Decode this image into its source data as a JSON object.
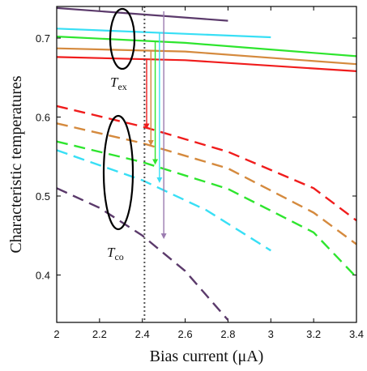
{
  "chart_data": {
    "type": "line",
    "title": "",
    "xlabel": "Bias current (μA)",
    "ylabel": "Characteristic temperatures",
    "xlim": [
      2,
      3.4
    ],
    "ylim": [
      0.34,
      0.74
    ],
    "xticks": [
      2,
      2.2,
      2.4,
      2.6,
      2.8,
      3,
      3.2,
      3.4
    ],
    "yticks": [
      0.4,
      0.5,
      0.6,
      0.7
    ],
    "xtick_labels": [
      "2",
      "2.2",
      "2.4",
      "2.6",
      "2.8",
      "3",
      "3.2",
      "3.4"
    ],
    "ytick_labels": [
      "0.4",
      "0.5",
      "0.6",
      "0.7"
    ],
    "grid": false,
    "series": [
      {
        "group": "Tex",
        "style": "solid",
        "color": "#5b3a6b",
        "x": [
          2.0,
          2.8
        ],
        "y": [
          0.738,
          0.722
        ]
      },
      {
        "group": "Tex",
        "style": "solid",
        "color": "#38dff5",
        "x": [
          2.0,
          3.0
        ],
        "y": [
          0.712,
          0.701
        ]
      },
      {
        "group": "Tex",
        "style": "solid",
        "color": "#2ee52e",
        "x": [
          2.0,
          2.6,
          3.4
        ],
        "y": [
          0.702,
          0.694,
          0.677
        ]
      },
      {
        "group": "Tex",
        "style": "solid",
        "color": "#d58a3e",
        "x": [
          2.0,
          2.6,
          3.4
        ],
        "y": [
          0.687,
          0.683,
          0.667
        ]
      },
      {
        "group": "Tex",
        "style": "solid",
        "color": "#f01c1c",
        "x": [
          2.0,
          2.6,
          3.4
        ],
        "y": [
          0.676,
          0.672,
          0.658
        ]
      },
      {
        "group": "Tco",
        "style": "dashed",
        "color": "#f01c1c",
        "x": [
          2.0,
          2.4,
          2.8,
          3.2,
          3.4
        ],
        "y": [
          0.614,
          0.588,
          0.556,
          0.51,
          0.469
        ]
      },
      {
        "group": "Tco",
        "style": "dashed",
        "color": "#d58a3e",
        "x": [
          2.0,
          2.4,
          2.8,
          3.2,
          3.4
        ],
        "y": [
          0.592,
          0.567,
          0.535,
          0.479,
          0.439
        ]
      },
      {
        "group": "Tco",
        "style": "dashed",
        "color": "#2ee52e",
        "x": [
          2.0,
          2.4,
          2.8,
          3.2,
          3.4
        ],
        "y": [
          0.569,
          0.543,
          0.509,
          0.454,
          0.397
        ]
      },
      {
        "group": "Tco",
        "style": "dashed",
        "color": "#38dff5",
        "x": [
          2.0,
          2.4,
          2.7,
          3.0
        ],
        "y": [
          0.558,
          0.52,
          0.482,
          0.431
        ]
      },
      {
        "group": "Tco",
        "style": "dashed",
        "color": "#5b3a6b",
        "x": [
          2.0,
          2.2,
          2.4,
          2.6,
          2.8
        ],
        "y": [
          0.51,
          0.485,
          0.45,
          0.405,
          0.343
        ]
      }
    ],
    "reference_line": {
      "x": 2.41,
      "style": "dotted",
      "color": "#555555"
    },
    "arrows": [
      {
        "color": "#f01c1c",
        "x": 2.42,
        "y_start": 0.674,
        "y_end": 0.586
      },
      {
        "color": "#d58a3e",
        "x": 2.44,
        "y_start": 0.684,
        "y_end": 0.565
      },
      {
        "color": "#2ee52e",
        "x": 2.46,
        "y_start": 0.696,
        "y_end": 0.541
      },
      {
        "color": "#38dff5",
        "x": 2.48,
        "y_start": 0.706,
        "y_end": 0.518
      },
      {
        "color": "#9b7bb0",
        "x": 2.5,
        "y_start": 0.734,
        "y_end": 0.447
      }
    ],
    "annotations": [
      {
        "label": "T",
        "subscript": "ex"
      },
      {
        "label": "T",
        "subscript": "co"
      }
    ]
  }
}
